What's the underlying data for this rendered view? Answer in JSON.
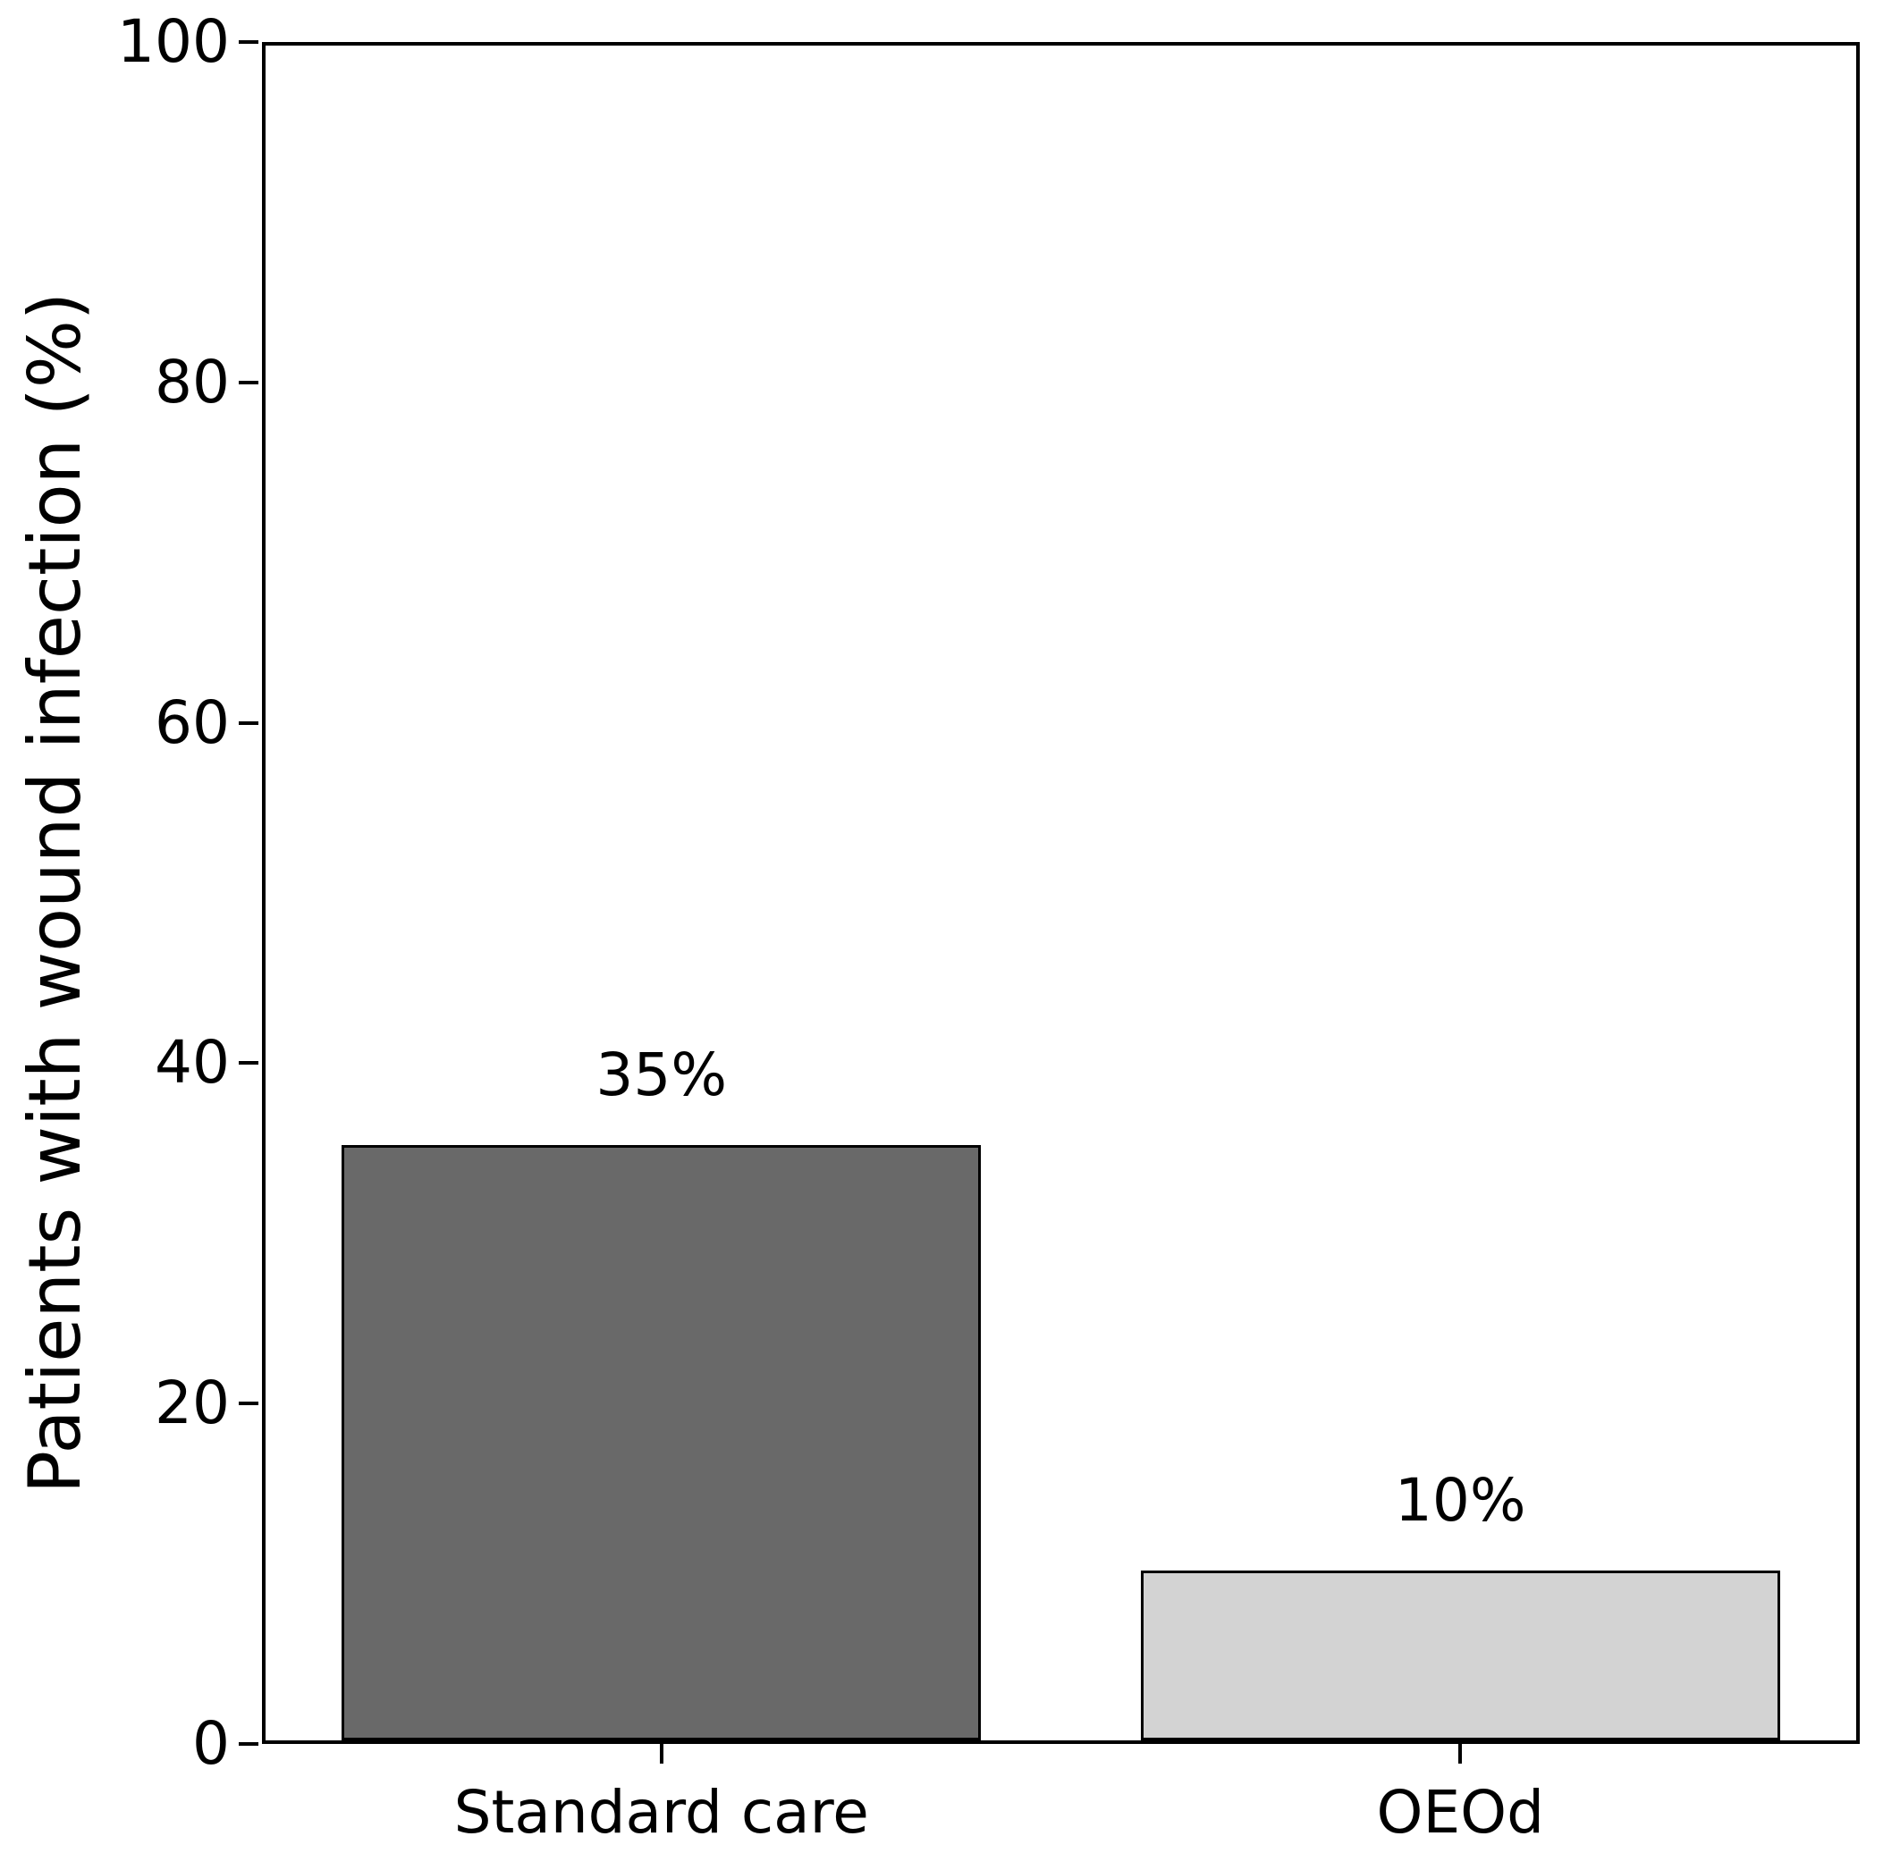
{
  "chart_data": {
    "type": "bar",
    "title": "",
    "xlabel": "",
    "ylabel": "Patients with wound infection (%)",
    "categories": [
      "Standard care",
      "OEOd"
    ],
    "values": [
      35,
      10
    ],
    "value_labels": [
      "35%",
      "10%"
    ],
    "bar_colors": [
      "#696969",
      "#d3d3d3"
    ],
    "bar_edge_color": "#000000",
    "ylim": [
      0,
      100
    ],
    "yticks": [
      0,
      20,
      40,
      60,
      80,
      100
    ],
    "grid": false,
    "legend_position": "none",
    "background_color": "#ffffff",
    "text_color": "#000000"
  }
}
